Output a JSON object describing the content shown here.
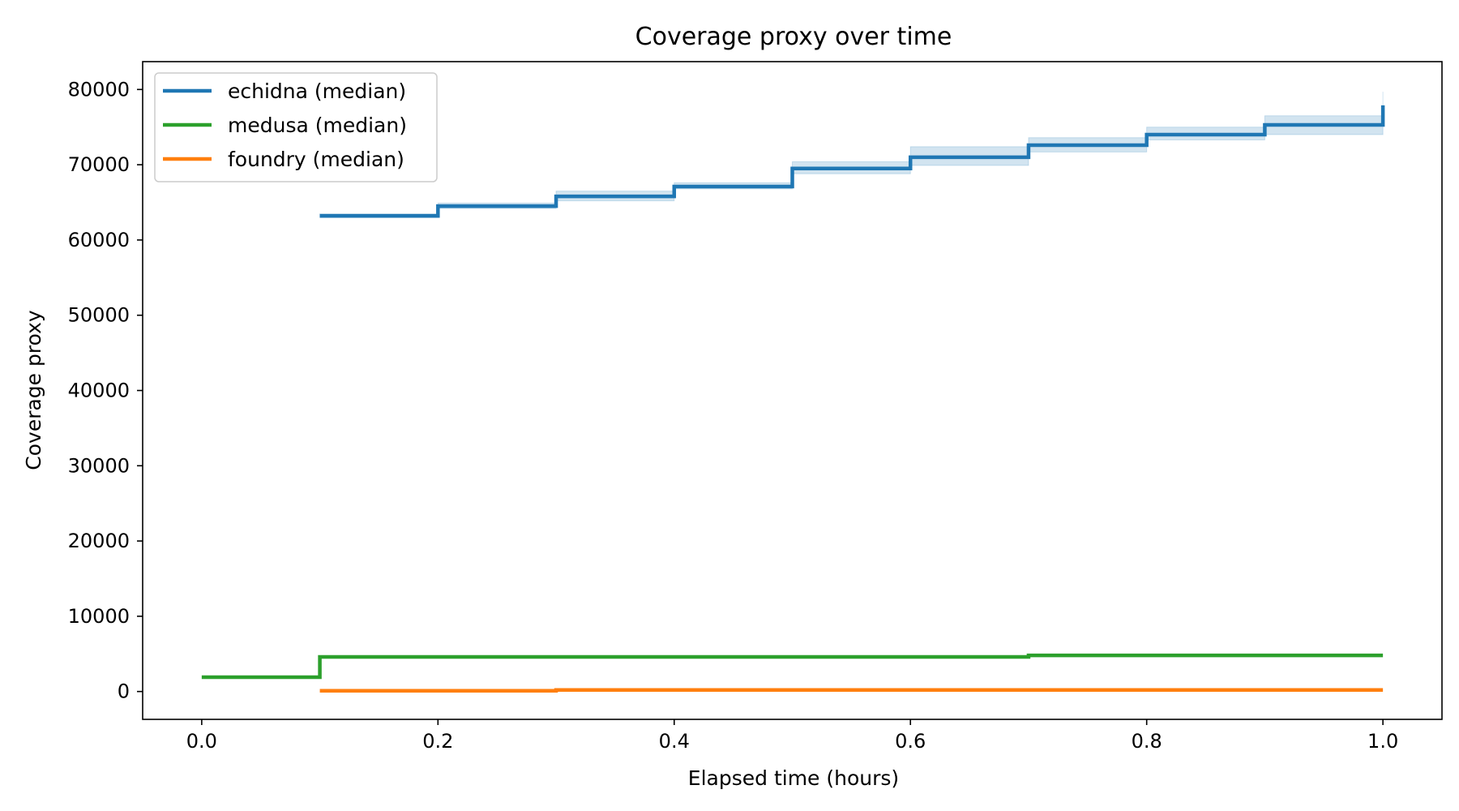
{
  "chart_data": {
    "type": "line",
    "step": "post",
    "title": "Coverage proxy over time",
    "xlabel": "Elapsed time (hours)",
    "ylabel": "Coverage proxy",
    "xlim": [
      -0.05,
      1.05
    ],
    "ylim": [
      -3700,
      83700
    ],
    "x_ticks": [
      0.0,
      0.2,
      0.4,
      0.6,
      0.8,
      1.0
    ],
    "x_tick_labels": [
      "0.0",
      "0.2",
      "0.4",
      "0.6",
      "0.8",
      "1.0"
    ],
    "y_ticks": [
      0,
      10000,
      20000,
      30000,
      40000,
      50000,
      60000,
      70000,
      80000
    ],
    "y_tick_labels": [
      "0",
      "10000",
      "20000",
      "30000",
      "40000",
      "50000",
      "60000",
      "70000",
      "80000"
    ],
    "grid": false,
    "legend_position": "upper left",
    "series": [
      {
        "name": "echidna (median)",
        "color": "#1f77b4",
        "x": [
          0.1,
          0.2,
          0.3,
          0.4,
          0.5,
          0.6,
          0.7,
          0.8,
          0.9,
          1.0,
          1.0
        ],
        "y": [
          63200,
          64500,
          65800,
          67100,
          69500,
          71000,
          72600,
          74000,
          75300,
          75300,
          77900
        ],
        "band": {
          "color": "#1f77b4",
          "opacity": 0.2,
          "x": [
            0.1,
            0.2,
            0.3,
            0.4,
            0.5,
            0.6,
            0.7,
            0.8,
            0.9,
            1.0,
            1.0
          ],
          "lower": [
            63000,
            64200,
            65200,
            66800,
            68800,
            69900,
            71700,
            73300,
            74000,
            74000,
            74000
          ],
          "upper": [
            63500,
            64900,
            66500,
            67600,
            70400,
            72400,
            73600,
            75000,
            76500,
            76500,
            79700
          ]
        }
      },
      {
        "name": "medusa (median)",
        "color": "#2ca02c",
        "x": [
          0.0,
          0.1,
          0.7,
          1.0
        ],
        "y": [
          1900,
          4600,
          4800,
          4800
        ]
      },
      {
        "name": "foundry (median)",
        "color": "#ff7f0e",
        "x": [
          0.1,
          0.3,
          1.0
        ],
        "y": [
          100,
          200,
          200
        ]
      }
    ]
  }
}
